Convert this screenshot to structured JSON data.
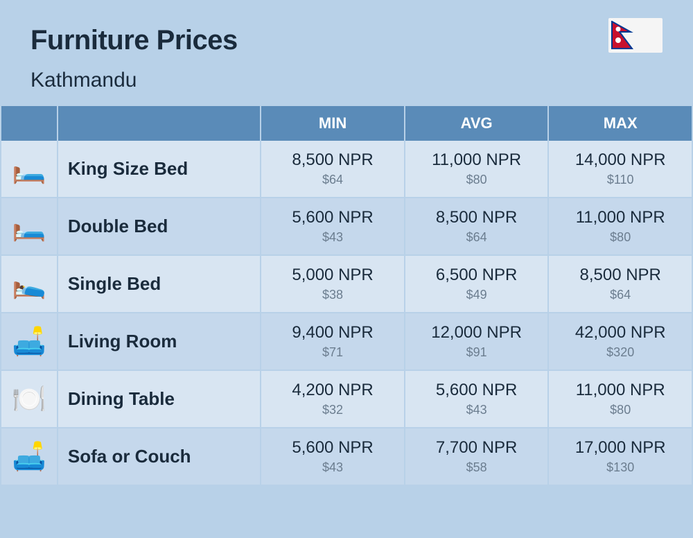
{
  "header": {
    "title": "Furniture Prices",
    "subtitle": "Kathmandu"
  },
  "columns": {
    "min": "MIN",
    "avg": "AVG",
    "max": "MAX"
  },
  "styling": {
    "page_bg": "#b8d1e8",
    "header_bg": "#5a8bb8",
    "header_text": "#ffffff",
    "row_odd_bg": "#d8e5f2",
    "row_even_bg": "#c5d8ec",
    "text_color": "#1a2b3c",
    "usd_color": "#6b7d8f",
    "title_fontsize": 40,
    "subtitle_fontsize": 30,
    "header_fontsize": 22,
    "name_fontsize": 26,
    "npr_fontsize": 24,
    "usd_fontsize": 18
  },
  "rows": [
    {
      "icon": "🛏️",
      "name": "King Size Bed",
      "min_npr": "8,500 NPR",
      "min_usd": "$64",
      "avg_npr": "11,000 NPR",
      "avg_usd": "$80",
      "max_npr": "14,000 NPR",
      "max_usd": "$110"
    },
    {
      "icon": "🛏️",
      "name": "Double Bed",
      "min_npr": "5,600 NPR",
      "min_usd": "$43",
      "avg_npr": "8,500 NPR",
      "avg_usd": "$64",
      "max_npr": "11,000 NPR",
      "max_usd": "$80"
    },
    {
      "icon": "🛌",
      "name": "Single Bed",
      "min_npr": "5,000 NPR",
      "min_usd": "$38",
      "avg_npr": "6,500 NPR",
      "avg_usd": "$49",
      "max_npr": "8,500 NPR",
      "max_usd": "$64"
    },
    {
      "icon": "🛋️",
      "name": "Living Room",
      "min_npr": "9,400 NPR",
      "min_usd": "$71",
      "avg_npr": "12,000 NPR",
      "avg_usd": "$91",
      "max_npr": "42,000 NPR",
      "max_usd": "$320"
    },
    {
      "icon": "🍽️",
      "name": "Dining Table",
      "min_npr": "4,200 NPR",
      "min_usd": "$32",
      "avg_npr": "5,600 NPR",
      "avg_usd": "$43",
      "max_npr": "11,000 NPR",
      "max_usd": "$80"
    },
    {
      "icon": "🛋️",
      "name": "Sofa or Couch",
      "min_npr": "5,600 NPR",
      "min_usd": "$43",
      "avg_npr": "7,700 NPR",
      "avg_usd": "$58",
      "max_npr": "17,000 NPR",
      "max_usd": "$130"
    }
  ]
}
